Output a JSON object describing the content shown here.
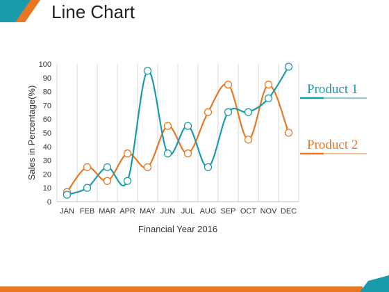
{
  "slide": {
    "title": "Line Chart",
    "accent_colors": {
      "teal": "#1a9bab",
      "orange": "#e87722"
    }
  },
  "chart_data": {
    "type": "line",
    "xlabel": "Financial Year 2016",
    "ylabel": "Sales in Percentage(%)",
    "ylim": [
      0,
      100
    ],
    "yticks": [
      0,
      10,
      20,
      30,
      40,
      50,
      60,
      70,
      80,
      90,
      100
    ],
    "categories": [
      "JAN",
      "FEB",
      "MAR",
      "APR",
      "MAY",
      "JUN",
      "JUL",
      "AUG",
      "SEP",
      "OCT",
      "NOV",
      "DEC"
    ],
    "grid": "vertical",
    "legend_position": "right",
    "series": [
      {
        "name": "Product 1",
        "color": "#1a9bab",
        "values": [
          5,
          10,
          25,
          15,
          95,
          35,
          55,
          25,
          65,
          65,
          75,
          98
        ]
      },
      {
        "name": "Product 2",
        "color": "#e87722",
        "values": [
          7,
          25,
          15,
          35,
          25,
          55,
          35,
          65,
          85,
          45,
          85,
          50
        ]
      }
    ]
  }
}
